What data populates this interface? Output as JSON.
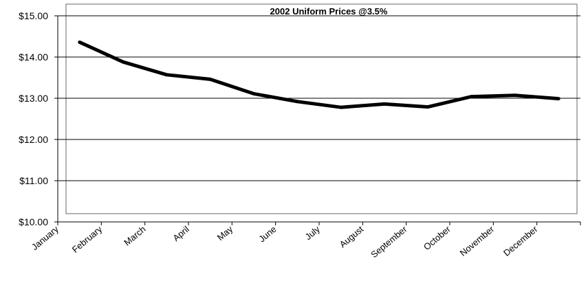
{
  "chart_data": {
    "type": "line",
    "title": "2002 Uniform Prices @3.5%",
    "xlabel": "",
    "ylabel": "",
    "categories": [
      "January",
      "February",
      "March",
      "April",
      "May",
      "June",
      "July",
      "August",
      "September",
      "October",
      "November",
      "December"
    ],
    "series": [
      {
        "values": [
          14.36,
          13.88,
          13.57,
          13.46,
          13.11,
          12.92,
          12.78,
          12.86,
          12.79,
          13.04,
          13.07,
          12.99
        ]
      }
    ],
    "ylim": [
      10,
      15
    ],
    "yticks": [
      "$10.00",
      "$11.00",
      "$12.00",
      "$13.00",
      "$14.00",
      "$15.00"
    ],
    "grid": true,
    "legend": "none",
    "colors": {
      "line": "#000000",
      "grid": "#000000",
      "plot_border": "#808080"
    }
  }
}
